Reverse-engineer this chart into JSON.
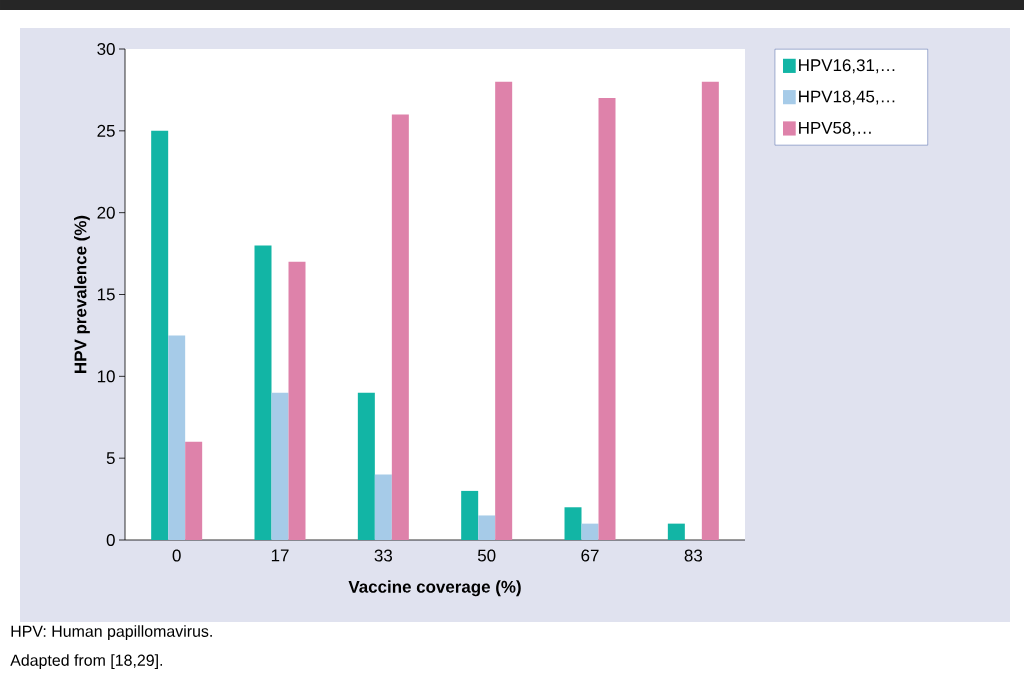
{
  "chart_data": {
    "type": "bar",
    "xlabel": "Vaccine coverage (%)",
    "ylabel": "HPV prevalence (%)",
    "categories": [
      "0",
      "17",
      "33",
      "50",
      "67",
      "83"
    ],
    "series": [
      {
        "name": "HPV16,31,…",
        "color": "#12b5a5",
        "values": [
          25,
          18,
          9,
          3,
          2,
          1
        ]
      },
      {
        "name": "HPV18,45,…",
        "color": "#a6cbe8",
        "values": [
          12.5,
          9,
          4,
          1.5,
          1,
          0
        ]
      },
      {
        "name": "HPV58,…",
        "color": "#de82aa",
        "values": [
          6,
          17,
          26,
          28,
          27,
          28
        ]
      }
    ],
    "ylim": [
      0,
      30
    ],
    "yticks": [
      0,
      5,
      10,
      15,
      20,
      25,
      30
    ],
    "legend": "top right",
    "annotations": [
      "HPV: Human papillomavirus.",
      "Adapted from  [18,29]."
    ]
  }
}
